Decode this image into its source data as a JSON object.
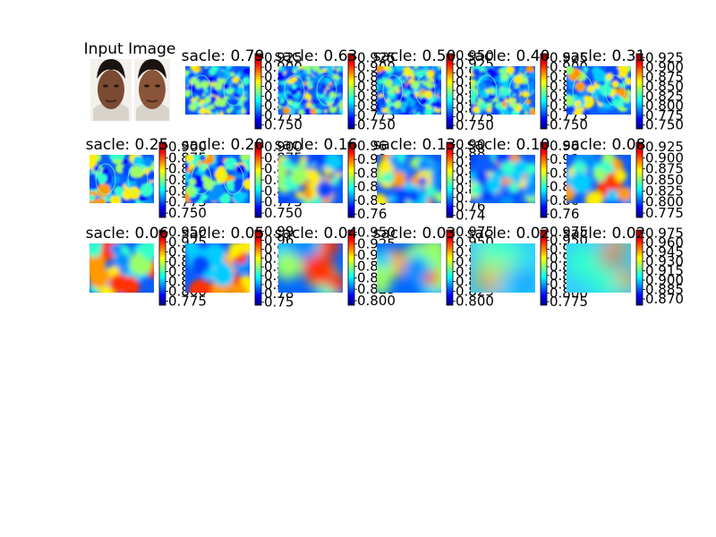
{
  "figure": {
    "input_title": "Input Image"
  },
  "chart_data": {
    "type": "heatmap",
    "colormap": "jet",
    "grid": false,
    "colorbar_placement": "right of each panel",
    "panels": [
      {
        "title": "sacle: 0.79",
        "row": 1,
        "col": 2,
        "content": "heatmap",
        "detail": "very fine",
        "colorbar_ticks": [
          "0.925",
          "0.900",
          "0.875",
          "0.850",
          "0.825",
          "0.800",
          "0.775",
          "0.750"
        ],
        "range": [
          0.74,
          0.935
        ]
      },
      {
        "title": "sacle: 0.63",
        "row": 1,
        "col": 3,
        "content": "heatmap",
        "detail": "very fine",
        "colorbar_ticks": [
          "0.925",
          "0.900",
          "0.875",
          "0.850",
          "0.825",
          "0.800",
          "0.775",
          "0.750"
        ],
        "range": [
          0.74,
          0.935
        ]
      },
      {
        "title": "sacle: 0.50",
        "row": 1,
        "col": 4,
        "content": "heatmap",
        "detail": "very fine",
        "colorbar_ticks": [
          "0.950",
          "0.925",
          "0.900",
          "0.875",
          "0.850",
          "0.825",
          "0.800",
          "0.775",
          "0.750"
        ],
        "range": [
          0.74,
          0.955
        ]
      },
      {
        "title": "sacle: 0.40",
        "row": 1,
        "col": 5,
        "content": "heatmap",
        "detail": "very fine",
        "colorbar_ticks": [
          "0.925",
          "0.900",
          "0.875",
          "0.850",
          "0.825",
          "0.800",
          "0.775",
          "0.750"
        ],
        "range": [
          0.74,
          0.935
        ]
      },
      {
        "title": "sacle: 0.31",
        "row": 1,
        "col": 6,
        "content": "heatmap",
        "detail": "fine",
        "colorbar_ticks": [
          "0.925",
          "0.900",
          "0.875",
          "0.850",
          "0.825",
          "0.800",
          "0.775",
          "0.750"
        ],
        "range": [
          0.74,
          0.935
        ]
      },
      {
        "title": "sacle: 0.25",
        "row": 2,
        "col": 1,
        "content": "heatmap",
        "detail": "fine",
        "colorbar_ticks": [
          "0.900",
          "0.875",
          "0.850",
          "0.825",
          "0.800",
          "0.775",
          "0.750"
        ],
        "range": [
          0.74,
          0.91
        ]
      },
      {
        "title": "sacle: 0.20",
        "row": 2,
        "col": 2,
        "content": "heatmap",
        "detail": "fine",
        "colorbar_ticks": [
          "0.900",
          "0.875",
          "0.850",
          "0.825",
          "0.800",
          "0.775",
          "0.750"
        ],
        "range": [
          0.74,
          0.91
        ]
      },
      {
        "title": "sacle: 0.16",
        "row": 2,
        "col": 3,
        "content": "heatmap",
        "detail": "medium",
        "colorbar_ticks": [
          "0.96",
          "0.92",
          "0.88",
          "0.84",
          "0.80",
          "0.76"
        ],
        "range": [
          0.75,
          0.97
        ]
      },
      {
        "title": "sacle: 0.13",
        "row": 2,
        "col": 4,
        "content": "heatmap",
        "detail": "medium",
        "colorbar_ticks": [
          "0.90",
          "0.88",
          "0.86",
          "0.84",
          "0.82",
          "0.80",
          "0.78",
          "0.76",
          "0.74"
        ],
        "range": [
          0.735,
          0.905
        ]
      },
      {
        "title": "sacle: 0.10",
        "row": 2,
        "col": 5,
        "content": "heatmap",
        "detail": "medium",
        "colorbar_ticks": [
          "0.96",
          "0.92",
          "0.88",
          "0.84",
          "0.80",
          "0.76"
        ],
        "range": [
          0.75,
          0.97
        ]
      },
      {
        "title": "sacle: 0.08",
        "row": 2,
        "col": 6,
        "content": "heatmap",
        "detail": "coarse",
        "colorbar_ticks": [
          "0.925",
          "0.900",
          "0.875",
          "0.850",
          "0.825",
          "0.800",
          "0.775"
        ],
        "range": [
          0.765,
          0.935
        ]
      },
      {
        "title": "sacle: 0.06",
        "row": 3,
        "col": 1,
        "content": "heatmap",
        "detail": "coarse",
        "colorbar_ticks": [
          "0.950",
          "0.925",
          "0.900",
          "0.875",
          "0.850",
          "0.825",
          "0.800",
          "0.775"
        ],
        "range": [
          0.765,
          0.955
        ]
      },
      {
        "title": "sacle: 0.05",
        "row": 3,
        "col": 2,
        "content": "heatmap",
        "detail": "coarse",
        "colorbar_ticks": [
          "0.99",
          "0.96",
          "0.93",
          "0.90",
          "0.87",
          "0.84",
          "0.81",
          "0.78",
          "0.75"
        ],
        "range": [
          0.74,
          0.995
        ]
      },
      {
        "title": "sacle: 0.04",
        "row": 3,
        "col": 3,
        "content": "heatmap",
        "detail": "very coarse",
        "colorbar_ticks": [
          "0.950",
          "0.925",
          "0.900",
          "0.875",
          "0.850",
          "0.825",
          "0.800"
        ],
        "range": [
          0.79,
          0.955
        ]
      },
      {
        "title": "sacle: 0.03",
        "row": 3,
        "col": 4,
        "content": "heatmap",
        "detail": "very coarse",
        "colorbar_ticks": [
          "0.975",
          "0.950",
          "0.925",
          "0.900",
          "0.875",
          "0.850",
          "0.825",
          "0.800"
        ],
        "range": [
          0.79,
          0.98
        ]
      },
      {
        "title": "sacle: 0.02",
        "row": 3,
        "col": 5,
        "content": "heatmap",
        "detail": "blob",
        "colorbar_ticks": [
          "0.975",
          "0.950",
          "0.925",
          "0.900",
          "0.875",
          "0.850",
          "0.825",
          "0.800",
          "0.775"
        ],
        "range": [
          0.765,
          0.98
        ]
      },
      {
        "title": "sacle: 0.02",
        "row": 3,
        "col": 6,
        "content": "heatmap",
        "detail": "blob",
        "colorbar_ticks": [
          "0.975",
          "0.960",
          "0.945",
          "0.930",
          "0.915",
          "0.900",
          "0.885",
          "0.870"
        ],
        "range": [
          0.86,
          0.98
        ]
      }
    ]
  }
}
